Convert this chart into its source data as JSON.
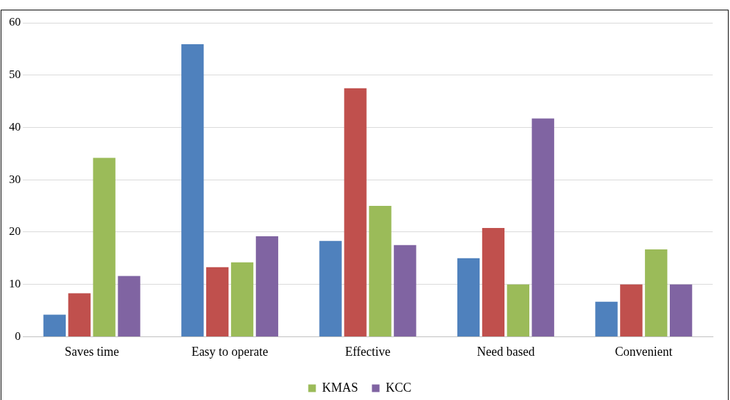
{
  "chart_data": {
    "type": "bar",
    "categories": [
      "Saves time",
      "Easy to operate",
      "Effective",
      "Need based",
      "Convenient"
    ],
    "series": [
      {
        "color": "#4f81bd",
        "values": [
          4.2,
          55.9,
          18.3,
          15,
          6.7
        ]
      },
      {
        "color": "#c0504d",
        "values": [
          8.3,
          13.3,
          47.5,
          20.8,
          10
        ]
      },
      {
        "name": "KMAS",
        "color": "#9bbb59",
        "values": [
          34.2,
          14.2,
          25,
          10,
          16.7
        ]
      },
      {
        "name": "KCC",
        "color": "#8064a2",
        "values": [
          11.6,
          19.2,
          17.5,
          41.7,
          10
        ]
      }
    ],
    "ylim": [
      0,
      60
    ],
    "yticks": [
      0,
      10,
      20,
      30,
      40,
      50,
      60
    ],
    "grid": "y",
    "legend": "bottom"
  }
}
